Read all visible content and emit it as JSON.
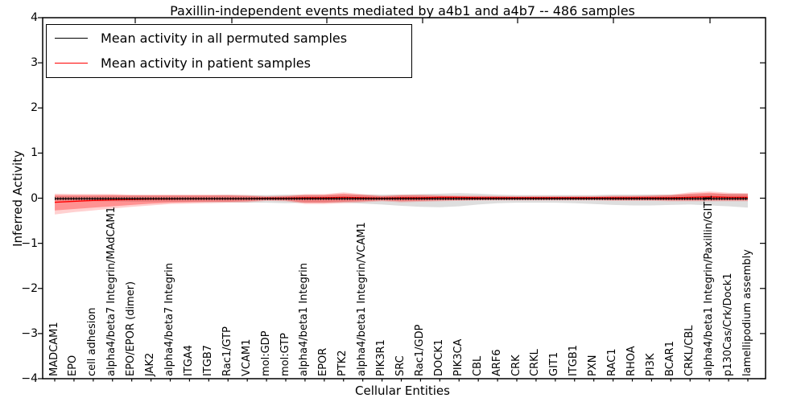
{
  "title": "Paxillin-independent events mediated by a4b1 and a4b7 -- 486 samples",
  "axes": {
    "xlabel": "Cellular Entities",
    "ylabel": "Inferred Activity",
    "ytick_labels": [
      "4",
      "3",
      "2",
      "1",
      "0",
      "−1",
      "−2",
      "−3",
      "−4"
    ]
  },
  "legend": {
    "items": [
      {
        "label": "Mean activity in all permuted samples",
        "color": "#000000"
      },
      {
        "label": "Mean activity in patient samples",
        "color": "#ff0000"
      }
    ]
  },
  "chart_data": {
    "type": "line",
    "title": "Paxillin-independent events mediated by a4b1 and a4b7 -- 486 samples",
    "xlabel": "Cellular Entities",
    "ylabel": "Inferred Activity",
    "ylim": [
      -4,
      4
    ],
    "yticks": [
      4,
      3,
      2,
      1,
      0,
      -1,
      -2,
      -3,
      -4
    ],
    "grid": false,
    "legend_position": "upper left",
    "categories": [
      "MADCAM1",
      "EPO",
      "cell adhesion",
      "alpha4/beta7 Integrin/MAdCAM1",
      "EPO/EPOR (dimer)",
      "JAK2",
      "alpha4/beta7 Integrin",
      "ITGA4",
      "ITGB7",
      "Rac1/GTP",
      "VCAM1",
      "mol:GDP",
      "mol:GTP",
      "alpha4/beta1 Integrin",
      "EPOR",
      "PTK2",
      "alpha4/beta1 Integrin/VCAM1",
      "PIK3R1",
      "SRC",
      "Rac1/GDP",
      "DOCK1",
      "PIK3CA",
      "CBL",
      "ARF6",
      "CRK",
      "CRKL",
      "GIT1",
      "ITGB1",
      "PXN",
      "RAC1",
      "RHOA",
      "PI3K",
      "BCAR1",
      "CRKL/CBL",
      "alpha4/beta1 Integrin/Paxillin/GIT1",
      "p130Cas/Crk/Dock1",
      "lamellipodium assembly"
    ],
    "series": [
      {
        "name": "Mean activity in all permuted samples",
        "color": "#000000",
        "values": [
          -0.01,
          -0.01,
          -0.01,
          -0.01,
          -0.01,
          -0.01,
          -0.01,
          -0.01,
          -0.01,
          -0.01,
          -0.01,
          -0.01,
          -0.01,
          -0.01,
          -0.01,
          -0.01,
          -0.01,
          -0.01,
          -0.01,
          -0.01,
          -0.01,
          -0.01,
          -0.01,
          -0.01,
          -0.01,
          -0.01,
          -0.01,
          -0.01,
          -0.01,
          -0.01,
          -0.01,
          -0.01,
          -0.01,
          -0.01,
          -0.01,
          -0.01,
          -0.01
        ]
      },
      {
        "name": "Mean activity in patient samples",
        "color": "#ff0000",
        "values": [
          -0.09,
          -0.07,
          -0.05,
          -0.04,
          -0.03,
          -0.02,
          -0.02,
          -0.01,
          -0.01,
          -0.01,
          -0.01,
          0.0,
          0.0,
          0.01,
          0.01,
          0.02,
          0.01,
          0.0,
          0.01,
          0.01,
          0.02,
          0.02,
          0.01,
          0.01,
          0.01,
          0.01,
          0.01,
          0.01,
          0.01,
          0.01,
          0.01,
          0.01,
          0.01,
          0.02,
          0.03,
          0.02,
          0.02
        ]
      }
    ],
    "bands": [
      {
        "name": "permuted-samples-range",
        "color": "rgba(0,0,0,0.13)",
        "upper": [
          0.05,
          0.05,
          0.05,
          0.06,
          0.06,
          0.06,
          0.06,
          0.06,
          0.06,
          0.07,
          0.07,
          0.07,
          0.08,
          0.07,
          0.07,
          0.07,
          0.08,
          0.08,
          0.08,
          0.09,
          0.1,
          0.11,
          0.1,
          0.08,
          0.07,
          0.07,
          0.07,
          0.07,
          0.07,
          0.08,
          0.08,
          0.08,
          0.08,
          0.08,
          0.09,
          0.1,
          0.1
        ],
        "lower": [
          -0.06,
          -0.06,
          -0.07,
          -0.07,
          -0.08,
          -0.08,
          -0.08,
          -0.08,
          -0.09,
          -0.09,
          -0.1,
          -0.1,
          -0.11,
          -0.1,
          -0.1,
          -0.1,
          -0.12,
          -0.14,
          -0.17,
          -0.19,
          -0.2,
          -0.18,
          -0.14,
          -0.11,
          -0.1,
          -0.1,
          -0.1,
          -0.11,
          -0.13,
          -0.15,
          -0.16,
          -0.16,
          -0.15,
          -0.14,
          -0.16,
          -0.18,
          -0.21
        ]
      },
      {
        "name": "patient-samples-range-outer",
        "color": "rgba(255,0,0,0.18)",
        "upper": [
          0.1,
          0.09,
          0.09,
          0.09,
          0.08,
          0.08,
          0.08,
          0.08,
          0.08,
          0.08,
          0.07,
          0.05,
          0.06,
          0.09,
          0.09,
          0.13,
          0.09,
          0.06,
          0.08,
          0.08,
          0.07,
          0.06,
          0.06,
          0.05,
          0.05,
          0.05,
          0.05,
          0.05,
          0.05,
          0.06,
          0.06,
          0.07,
          0.08,
          0.13,
          0.15,
          0.12,
          0.11
        ],
        "lower": [
          -0.36,
          -0.31,
          -0.27,
          -0.23,
          -0.19,
          -0.16,
          -0.13,
          -0.12,
          -0.11,
          -0.1,
          -0.09,
          -0.06,
          -0.07,
          -0.13,
          -0.13,
          -0.11,
          -0.09,
          -0.07,
          -0.09,
          -0.08,
          -0.07,
          -0.06,
          -0.05,
          -0.05,
          -0.05,
          -0.05,
          -0.05,
          -0.05,
          -0.05,
          -0.06,
          -0.06,
          -0.06,
          -0.07,
          -0.07,
          -0.07,
          -0.07,
          -0.07
        ]
      },
      {
        "name": "patient-samples-range-inner",
        "color": "rgba(255,0,0,0.30)",
        "upper": [
          0.07,
          0.07,
          0.07,
          0.07,
          0.06,
          0.06,
          0.06,
          0.06,
          0.06,
          0.06,
          0.05,
          0.03,
          0.04,
          0.07,
          0.07,
          0.1,
          0.07,
          0.04,
          0.06,
          0.06,
          0.05,
          0.04,
          0.04,
          0.04,
          0.03,
          0.03,
          0.03,
          0.03,
          0.03,
          0.04,
          0.04,
          0.05,
          0.06,
          0.1,
          0.12,
          0.09,
          0.09
        ],
        "lower": [
          -0.27,
          -0.24,
          -0.21,
          -0.18,
          -0.15,
          -0.12,
          -0.1,
          -0.09,
          -0.08,
          -0.08,
          -0.07,
          -0.04,
          -0.05,
          -0.1,
          -0.1,
          -0.08,
          -0.07,
          -0.05,
          -0.07,
          -0.06,
          -0.05,
          -0.04,
          -0.04,
          -0.03,
          -0.03,
          -0.03,
          -0.03,
          -0.03,
          -0.03,
          -0.04,
          -0.04,
          -0.04,
          -0.05,
          -0.05,
          -0.05,
          -0.05,
          -0.05
        ]
      }
    ]
  }
}
